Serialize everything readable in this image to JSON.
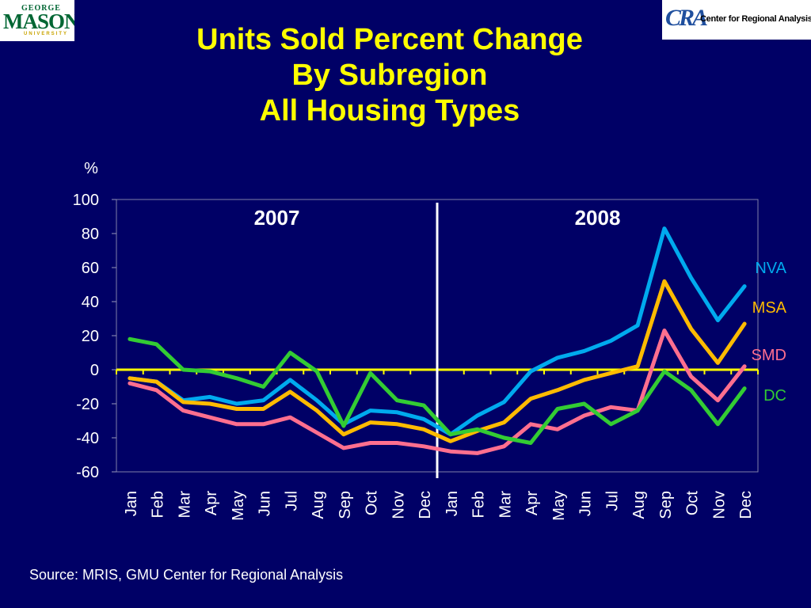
{
  "logos": {
    "gmu": {
      "top": "GEORGE",
      "main": "MASON",
      "bottom": "UNIVERSITY"
    },
    "cra": {
      "mark": "CRA",
      "text": "Center for Regional Analysis"
    }
  },
  "title": {
    "line1": "Units Sold Percent Change",
    "line2": "By Subregion",
    "line3": "All Housing Types"
  },
  "source": "Source: MRIS, GMU Center for Regional Analysis",
  "chart_data": {
    "type": "line",
    "ylabel": "%",
    "ylim": [
      -60,
      100
    ],
    "yticks": [
      100,
      80,
      60,
      40,
      20,
      0,
      -20,
      -40,
      -60
    ],
    "grid": false,
    "zero_line_color": "#ffff00",
    "year_labels": [
      "2007",
      "2008"
    ],
    "categories": [
      "Jan",
      "Feb",
      "Mar",
      "Apr",
      "May",
      "Jun",
      "Jul",
      "Aug",
      "Sep",
      "Oct",
      "Nov",
      "Dec",
      "Jan",
      "Feb",
      "Mar",
      "Apr",
      "May",
      "Jun",
      "Jul",
      "Aug",
      "Sep",
      "Oct",
      "Nov",
      "Dec"
    ],
    "series": [
      {
        "name": "NVA",
        "color": "#00aaee",
        "values": [
          -5,
          -7,
          -18,
          -16,
          -20,
          -18,
          -6,
          -18,
          -32,
          -24,
          -25,
          -29,
          -38,
          -27,
          -19,
          -1,
          7,
          11,
          17,
          26,
          83,
          54,
          29,
          49
        ]
      },
      {
        "name": "MSA",
        "color": "#ffbb00",
        "values": [
          -5,
          -7,
          -19,
          -20,
          -23,
          -23,
          -13,
          -24,
          -38,
          -31,
          -32,
          -35,
          -42,
          -36,
          -31,
          -17,
          -12,
          -6,
          -2,
          2,
          52,
          24,
          4,
          27
        ]
      },
      {
        "name": "SMD",
        "color": "#ff6f8f",
        "values": [
          -8,
          -12,
          -24,
          -28,
          -32,
          -32,
          -28,
          -37,
          -46,
          -43,
          -43,
          -45,
          -48,
          -49,
          -45,
          -32,
          -35,
          -27,
          -22,
          -24,
          23,
          -4,
          -18,
          2
        ]
      },
      {
        "name": "DC",
        "color": "#33cc33",
        "values": [
          18,
          15,
          0,
          -1,
          -5,
          -10,
          10,
          -1,
          -33,
          -2,
          -18,
          -21,
          -38,
          -35,
          -40,
          -43,
          -23,
          -20,
          -32,
          -24,
          -1,
          -12,
          -32,
          -11
        ]
      }
    ]
  }
}
